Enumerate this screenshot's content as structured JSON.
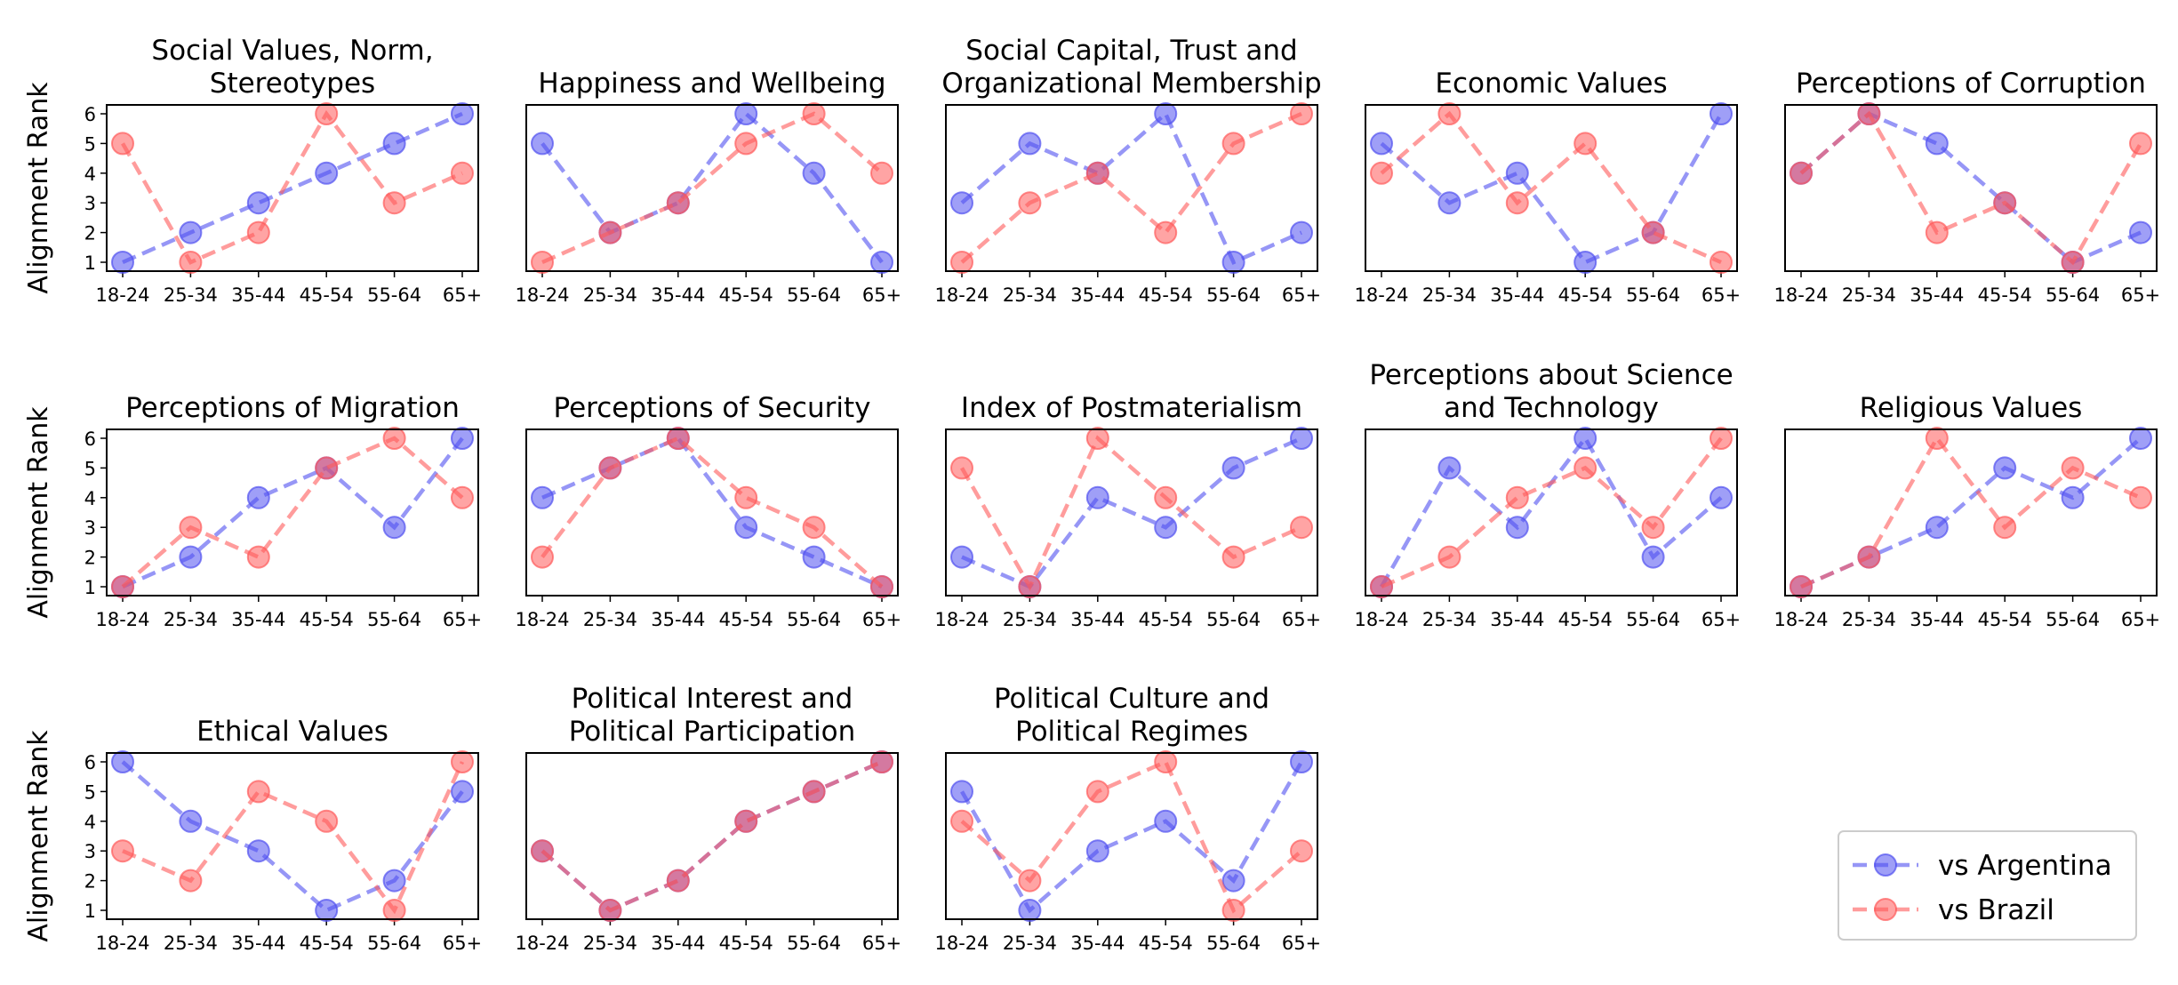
{
  "figure": {
    "ylabel": "Alignment Rank",
    "legend": {
      "placement": "bottom-right",
      "entries": [
        {
          "label": "vs Argentina",
          "color": "#5050f0"
        },
        {
          "label": "vs Brazil",
          "color": "#ff5a5a"
        }
      ]
    }
  },
  "chart_data": [
    {
      "type": "line",
      "title": "Social Values, Norm,\nStereotypes",
      "categories": [
        "18-24",
        "25-34",
        "35-44",
        "45-54",
        "55-64",
        "65+"
      ],
      "ylim": [
        1,
        6
      ],
      "series": [
        {
          "name": "vs Argentina",
          "values": [
            1,
            2,
            3,
            4,
            5,
            6
          ]
        },
        {
          "name": "vs Brazil",
          "values": [
            5,
            1,
            2,
            6,
            3,
            4
          ]
        }
      ]
    },
    {
      "type": "line",
      "title": "Happiness and Wellbeing",
      "categories": [
        "18-24",
        "25-34",
        "35-44",
        "45-54",
        "55-64",
        "65+"
      ],
      "ylim": [
        1,
        6
      ],
      "series": [
        {
          "name": "vs Argentina",
          "values": [
            5,
            2,
            3,
            6,
            4,
            1
          ]
        },
        {
          "name": "vs Brazil",
          "values": [
            1,
            2,
            3,
            5,
            6,
            4
          ]
        }
      ]
    },
    {
      "type": "line",
      "title": "Social Capital, Trust and\nOrganizational Membership",
      "categories": [
        "18-24",
        "25-34",
        "35-44",
        "45-54",
        "55-64",
        "65+"
      ],
      "ylim": [
        1,
        6
      ],
      "series": [
        {
          "name": "vs Argentina",
          "values": [
            3,
            5,
            4,
            6,
            1,
            2
          ]
        },
        {
          "name": "vs Brazil",
          "values": [
            1,
            3,
            4,
            2,
            5,
            6
          ]
        }
      ]
    },
    {
      "type": "line",
      "title": "Economic Values",
      "categories": [
        "18-24",
        "25-34",
        "35-44",
        "45-54",
        "55-64",
        "65+"
      ],
      "ylim": [
        1,
        6
      ],
      "series": [
        {
          "name": "vs Argentina",
          "values": [
            5,
            3,
            4,
            1,
            2,
            6
          ]
        },
        {
          "name": "vs Brazil",
          "values": [
            4,
            6,
            3,
            5,
            2,
            1
          ]
        }
      ]
    },
    {
      "type": "line",
      "title": "Perceptions of Corruption",
      "categories": [
        "18-24",
        "25-34",
        "35-44",
        "45-54",
        "55-64",
        "65+"
      ],
      "ylim": [
        1,
        6
      ],
      "series": [
        {
          "name": "vs Argentina",
          "values": [
            4,
            6,
            5,
            3,
            1,
            2
          ]
        },
        {
          "name": "vs Brazil",
          "values": [
            4,
            6,
            2,
            3,
            1,
            5
          ]
        }
      ]
    },
    {
      "type": "line",
      "title": "Perceptions of Migration",
      "categories": [
        "18-24",
        "25-34",
        "35-44",
        "45-54",
        "55-64",
        "65+"
      ],
      "ylim": [
        1,
        6
      ],
      "series": [
        {
          "name": "vs Argentina",
          "values": [
            1,
            2,
            4,
            5,
            3,
            6
          ]
        },
        {
          "name": "vs Brazil",
          "values": [
            1,
            3,
            2,
            5,
            6,
            4
          ]
        }
      ]
    },
    {
      "type": "line",
      "title": "Perceptions of Security",
      "categories": [
        "18-24",
        "25-34",
        "35-44",
        "45-54",
        "55-64",
        "65+"
      ],
      "ylim": [
        1,
        6
      ],
      "series": [
        {
          "name": "vs Argentina",
          "values": [
            4,
            5,
            6,
            3,
            2,
            1
          ]
        },
        {
          "name": "vs Brazil",
          "values": [
            2,
            5,
            6,
            4,
            3,
            1
          ]
        }
      ]
    },
    {
      "type": "line",
      "title": "Index of Postmaterialism",
      "categories": [
        "18-24",
        "25-34",
        "35-44",
        "45-54",
        "55-64",
        "65+"
      ],
      "ylim": [
        1,
        6
      ],
      "series": [
        {
          "name": "vs Argentina",
          "values": [
            2,
            1,
            4,
            3,
            5,
            6
          ]
        },
        {
          "name": "vs Brazil",
          "values": [
            5,
            1,
            6,
            4,
            2,
            3
          ]
        }
      ]
    },
    {
      "type": "line",
      "title": "Perceptions about Science\nand Technology",
      "categories": [
        "18-24",
        "25-34",
        "35-44",
        "45-54",
        "55-64",
        "65+"
      ],
      "ylim": [
        1,
        6
      ],
      "series": [
        {
          "name": "vs Argentina",
          "values": [
            1,
            5,
            3,
            6,
            2,
            4
          ]
        },
        {
          "name": "vs Brazil",
          "values": [
            1,
            2,
            4,
            5,
            3,
            6
          ]
        }
      ]
    },
    {
      "type": "line",
      "title": "Religious Values",
      "categories": [
        "18-24",
        "25-34",
        "35-44",
        "45-54",
        "55-64",
        "65+"
      ],
      "ylim": [
        1,
        6
      ],
      "series": [
        {
          "name": "vs Argentina",
          "values": [
            1,
            2,
            3,
            5,
            4,
            6
          ]
        },
        {
          "name": "vs Brazil",
          "values": [
            1,
            2,
            6,
            3,
            5,
            4
          ]
        }
      ]
    },
    {
      "type": "line",
      "title": "Ethical Values",
      "categories": [
        "18-24",
        "25-34",
        "35-44",
        "45-54",
        "55-64",
        "65+"
      ],
      "ylim": [
        1,
        6
      ],
      "series": [
        {
          "name": "vs Argentina",
          "values": [
            6,
            4,
            3,
            1,
            2,
            5
          ]
        },
        {
          "name": "vs Brazil",
          "values": [
            3,
            2,
            5,
            4,
            1,
            6
          ]
        }
      ]
    },
    {
      "type": "line",
      "title": "Political Interest and\nPolitical Participation",
      "categories": [
        "18-24",
        "25-34",
        "35-44",
        "45-54",
        "55-64",
        "65+"
      ],
      "ylim": [
        1,
        6
      ],
      "series": [
        {
          "name": "vs Argentina",
          "values": [
            3,
            1,
            2,
            4,
            5,
            6
          ]
        },
        {
          "name": "vs Brazil",
          "values": [
            3,
            1,
            2,
            4,
            5,
            6
          ]
        }
      ]
    },
    {
      "type": "line",
      "title": "Political Culture and\nPolitical Regimes",
      "categories": [
        "18-24",
        "25-34",
        "35-44",
        "45-54",
        "55-64",
        "65+"
      ],
      "ylim": [
        1,
        6
      ],
      "series": [
        {
          "name": "vs Argentina",
          "values": [
            5,
            1,
            3,
            4,
            2,
            6
          ]
        },
        {
          "name": "vs Brazil",
          "values": [
            4,
            2,
            5,
            6,
            1,
            3
          ]
        }
      ]
    }
  ]
}
